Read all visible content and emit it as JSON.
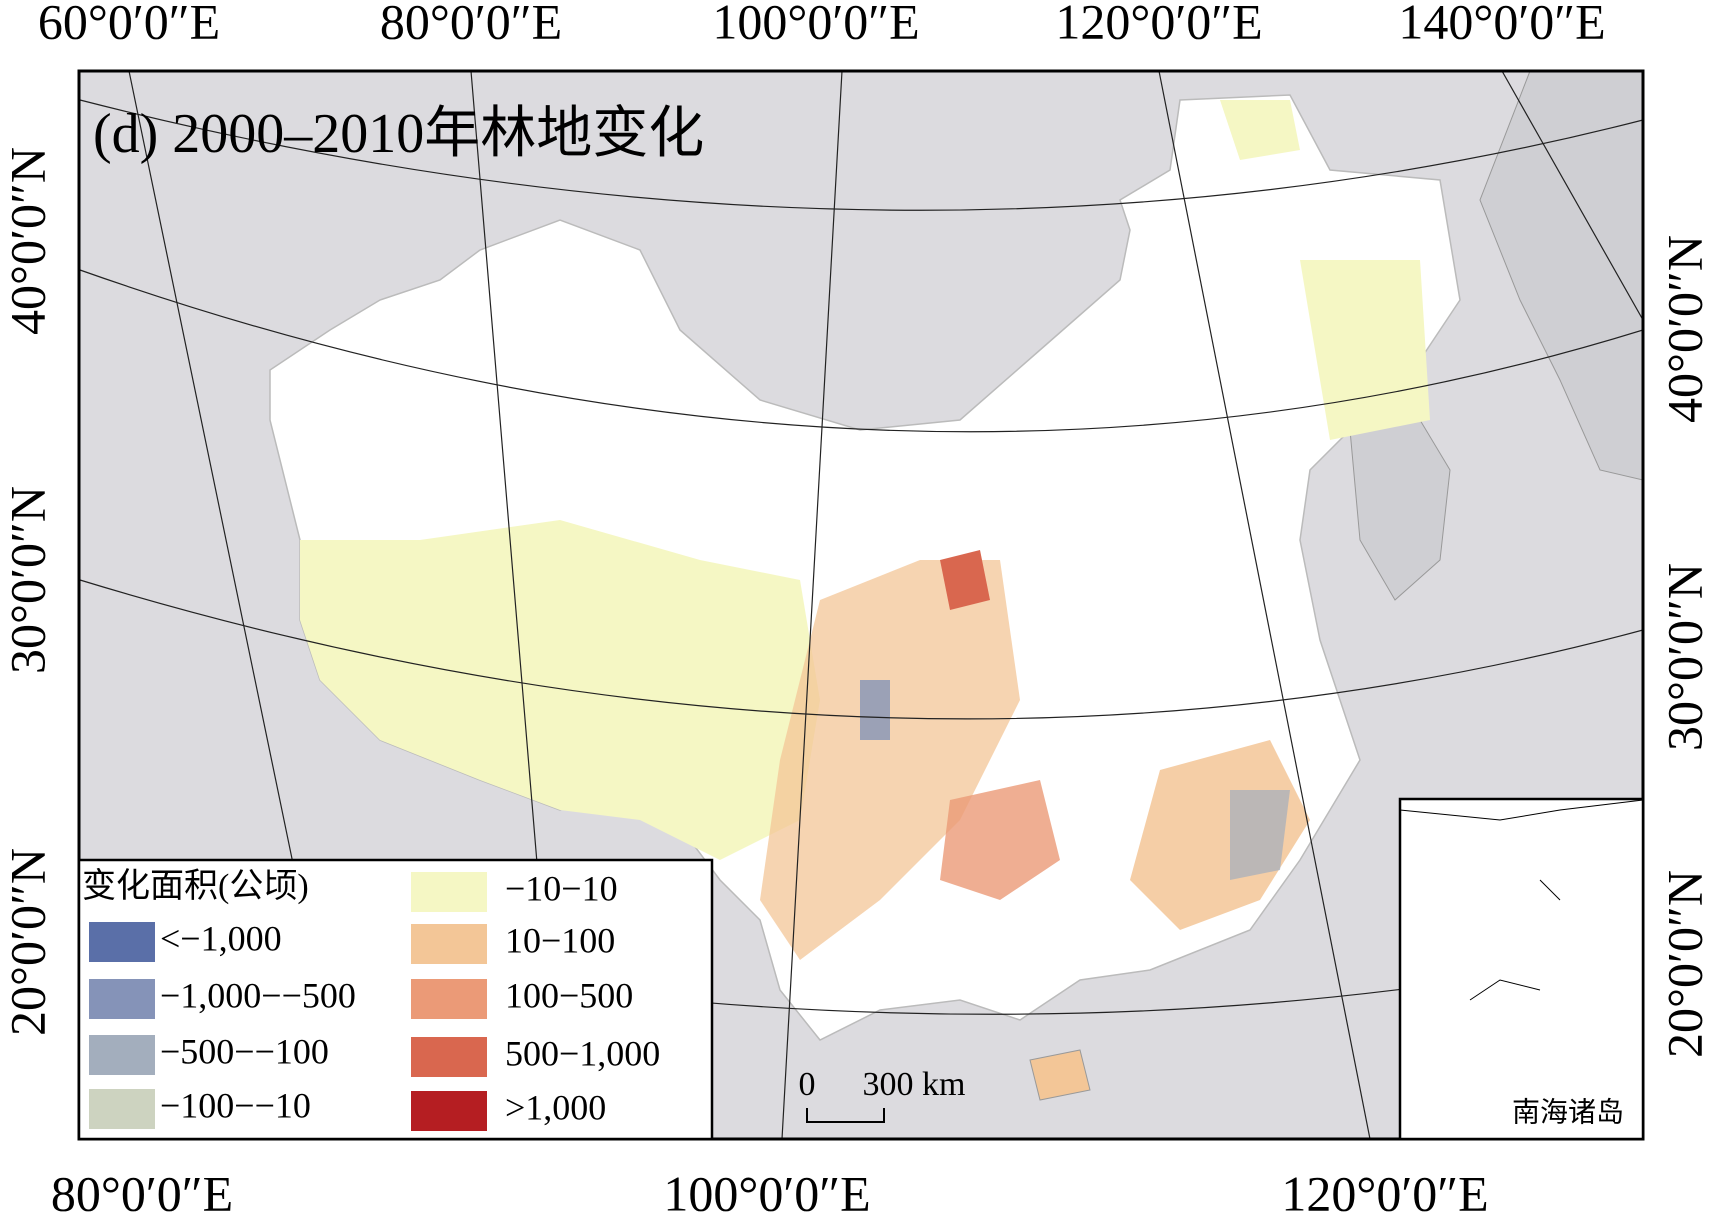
{
  "title": "(d) 2000–2010年林地变化",
  "top_labels": [
    "60°0′0″E",
    "80°0′0″E",
    "100°0′0″E",
    "120°0′0″E",
    "140°0′0″E"
  ],
  "bottom_labels": [
    "80°0′0″E",
    "100°0′0″E",
    "120°0′0″E"
  ],
  "left_labels": [
    "40°0′0″N",
    "30°0′0″N",
    "20°0′0″N"
  ],
  "right_labels": [
    "40°0′0″N",
    "30°0′0″N",
    "20°0′0″N"
  ],
  "legend": {
    "title": "变化面积(公顷)",
    "items": [
      {
        "label": "<−1,000",
        "color": "#5a6fa8"
      },
      {
        "label": "−1,000−−500",
        "color": "#8593b8"
      },
      {
        "label": "−500−−100",
        "color": "#a3aebd"
      },
      {
        "label": "−100−−10",
        "color": "#cdd3c0"
      },
      {
        "label": "−10−10",
        "color": "#f5f7c4"
      },
      {
        "label": "10−100",
        "color": "#f3c697"
      },
      {
        "label": "100−500",
        "color": "#eb9a77"
      },
      {
        "label": "500−1,000",
        "color": "#d9674f"
      },
      {
        "label": ">1,000",
        "color": "#b51e22"
      }
    ]
  },
  "scale_bar": {
    "start": "0",
    "end": "300 km"
  },
  "inset_label": "南海诸岛"
}
